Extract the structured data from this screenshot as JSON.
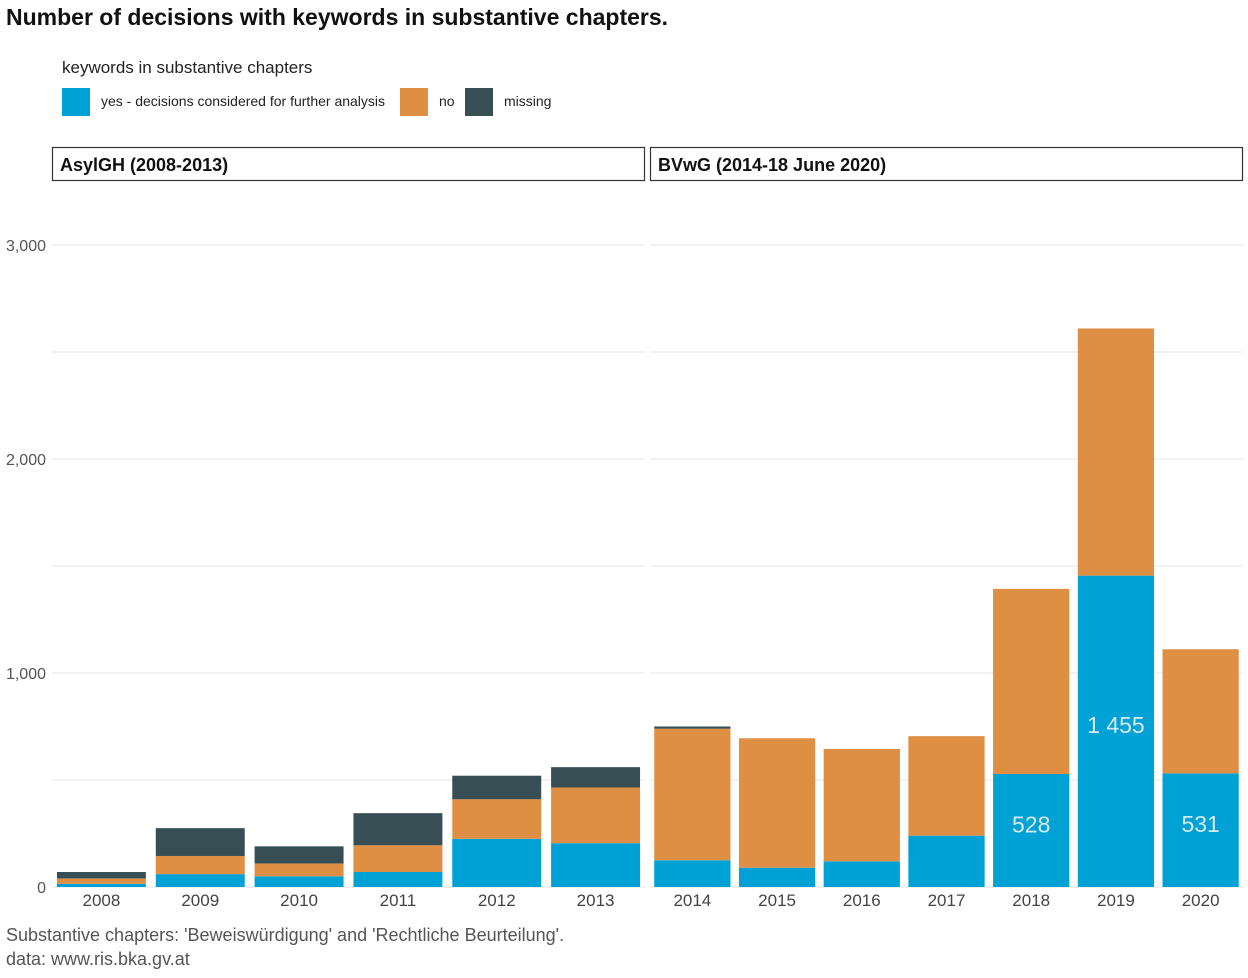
{
  "chart_data": {
    "type": "bar",
    "stacked": true,
    "title": "Number of decisions with keywords in substantive chapters.",
    "legend": {
      "title": "keywords in substantive chapters",
      "placement": "top-left",
      "entries": [
        {
          "name": "yes - decisions considered for further analysis",
          "color": "#00A1D5"
        },
        {
          "name": "no",
          "color": "#DF8F44"
        },
        {
          "name": "missing",
          "color": "#374E55"
        }
      ]
    },
    "ylim": [
      0,
      3000
    ],
    "yticks": [
      0,
      1000,
      2000,
      3000
    ],
    "ytick_labels": [
      "0",
      "1,000",
      "2,000",
      "3,000"
    ],
    "xlabel": "",
    "ylabel": "",
    "panels": [
      {
        "label": "AsylGH (2008-2013)",
        "categories": [
          "2008",
          "2009",
          "2010",
          "2011",
          "2012",
          "2013"
        ],
        "series": [
          {
            "name": "yes - decisions considered for further analysis",
            "values": [
              15,
              60,
              50,
              70,
              225,
              205
            ]
          },
          {
            "name": "no",
            "values": [
              25,
              85,
              60,
              125,
              185,
              260
            ]
          },
          {
            "name": "missing",
            "values": [
              30,
              130,
              80,
              150,
              110,
              95
            ]
          }
        ],
        "bar_labels": [
          "",
          "",
          "",
          "",
          "",
          ""
        ]
      },
      {
        "label": "BVwG (2014-18 June 2020)",
        "categories": [
          "2014",
          "2015",
          "2016",
          "2017",
          "2018",
          "2019",
          "2020"
        ],
        "series": [
          {
            "name": "yes - decisions considered for further analysis",
            "values": [
              125,
              90,
              120,
              240,
              528,
              1455,
              531
            ]
          },
          {
            "name": "no",
            "values": [
              615,
              605,
              525,
              465,
              865,
              1155,
              580
            ]
          },
          {
            "name": "missing",
            "values": [
              10,
              0,
              0,
              0,
              0,
              0,
              0
            ]
          }
        ],
        "bar_labels": [
          "",
          "",
          "",
          "",
          "528",
          "1 455",
          "531"
        ]
      }
    ],
    "captions": [
      "Substantive chapters: 'Beweiswürdigung' and 'Rechtliche Beurteilung'.",
      "data: www.ris.bka.gv.at"
    ]
  }
}
